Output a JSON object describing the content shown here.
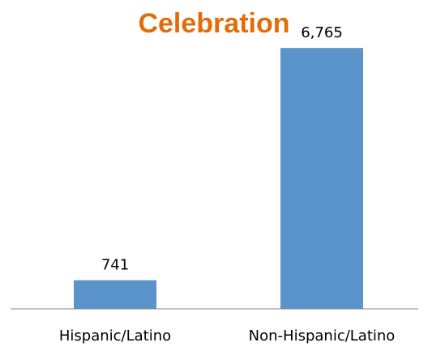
{
  "chart_data": {
    "type": "bar",
    "title": "Celebration",
    "categories": [
      "Hispanic/Latino",
      "Non-Hispanic/Latino"
    ],
    "values": [
      741,
      6765
    ],
    "data_labels": [
      "741",
      "6,765"
    ],
    "ylim": [
      0,
      7000
    ],
    "xlabel": "",
    "ylabel": "",
    "grid": false,
    "legend": "none",
    "colors": {
      "bar": "#5B93CB",
      "title": "#E36C0A",
      "axis": "#868686"
    }
  }
}
